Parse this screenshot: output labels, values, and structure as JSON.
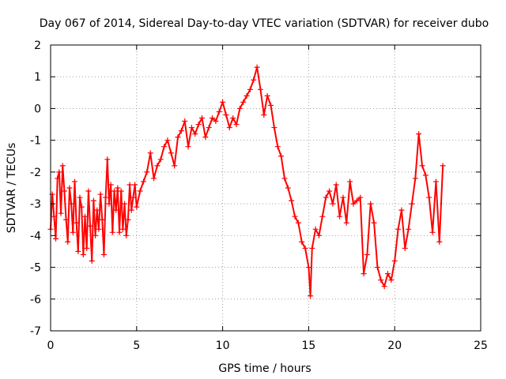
{
  "chart_data": {
    "type": "scatter",
    "title": "Day 067 of 2014, Sidereal Day-to-day VTEC variation (SDTVAR) for receiver dubo",
    "xlabel": "GPS time / hours",
    "ylabel": "SDTVAR / TECUs",
    "xlim": [
      0,
      25
    ],
    "ylim": [
      -7,
      2
    ],
    "xticks": [
      0,
      5,
      10,
      15,
      20,
      25
    ],
    "yticks": [
      -7,
      -6,
      -5,
      -4,
      -3,
      -2,
      -1,
      0,
      1,
      2
    ],
    "grid": true,
    "series_color": "#ff0000",
    "marker": "plus",
    "series": [
      {
        "name": "SDTVAR",
        "points": [
          [
            0.0,
            -3.8
          ],
          [
            0.1,
            -2.7
          ],
          [
            0.2,
            -3.4
          ],
          [
            0.3,
            -4.1
          ],
          [
            0.4,
            -2.2
          ],
          [
            0.5,
            -2.0
          ],
          [
            0.6,
            -3.3
          ],
          [
            0.7,
            -1.8
          ],
          [
            0.8,
            -2.6
          ],
          [
            0.9,
            -3.5
          ],
          [
            1.0,
            -4.2
          ],
          [
            1.1,
            -2.5
          ],
          [
            1.2,
            -3.0
          ],
          [
            1.3,
            -3.9
          ],
          [
            1.4,
            -2.3
          ],
          [
            1.5,
            -3.6
          ],
          [
            1.6,
            -4.5
          ],
          [
            1.7,
            -2.8
          ],
          [
            1.8,
            -3.1
          ],
          [
            1.9,
            -4.6
          ],
          [
            2.0,
            -3.4
          ],
          [
            2.1,
            -4.4
          ],
          [
            2.2,
            -2.6
          ],
          [
            2.3,
            -3.7
          ],
          [
            2.4,
            -4.8
          ],
          [
            2.5,
            -2.9
          ],
          [
            2.6,
            -4.0
          ],
          [
            2.7,
            -3.2
          ],
          [
            2.8,
            -3.8
          ],
          [
            2.9,
            -2.7
          ],
          [
            3.0,
            -3.5
          ],
          [
            3.1,
            -4.6
          ],
          [
            3.2,
            -2.8
          ],
          [
            3.3,
            -1.6
          ],
          [
            3.4,
            -3.0
          ],
          [
            3.5,
            -2.4
          ],
          [
            3.6,
            -3.9
          ],
          [
            3.7,
            -2.6
          ],
          [
            3.8,
            -3.2
          ],
          [
            3.9,
            -2.5
          ],
          [
            4.0,
            -3.9
          ],
          [
            4.1,
            -2.6
          ],
          [
            4.2,
            -3.8
          ],
          [
            4.3,
            -3.0
          ],
          [
            4.4,
            -4.0
          ],
          [
            4.5,
            -3.5
          ],
          [
            4.6,
            -2.4
          ],
          [
            4.7,
            -3.2
          ],
          [
            4.8,
            -2.8
          ],
          [
            4.9,
            -2.4
          ],
          [
            5.0,
            -3.1
          ],
          [
            5.2,
            -2.6
          ],
          [
            5.4,
            -2.3
          ],
          [
            5.6,
            -2.0
          ],
          [
            5.8,
            -1.4
          ],
          [
            6.0,
            -2.2
          ],
          [
            6.2,
            -1.8
          ],
          [
            6.4,
            -1.6
          ],
          [
            6.6,
            -1.2
          ],
          [
            6.8,
            -1.0
          ],
          [
            7.0,
            -1.4
          ],
          [
            7.2,
            -1.8
          ],
          [
            7.4,
            -0.9
          ],
          [
            7.6,
            -0.7
          ],
          [
            7.8,
            -0.4
          ],
          [
            8.0,
            -1.2
          ],
          [
            8.2,
            -0.6
          ],
          [
            8.4,
            -0.8
          ],
          [
            8.6,
            -0.5
          ],
          [
            8.8,
            -0.3
          ],
          [
            9.0,
            -0.9
          ],
          [
            9.2,
            -0.6
          ],
          [
            9.4,
            -0.3
          ],
          [
            9.6,
            -0.4
          ],
          [
            9.8,
            -0.1
          ],
          [
            10.0,
            0.2
          ],
          [
            10.2,
            -0.2
          ],
          [
            10.4,
            -0.6
          ],
          [
            10.6,
            -0.3
          ],
          [
            10.8,
            -0.5
          ],
          [
            11.0,
            0.0
          ],
          [
            11.2,
            0.2
          ],
          [
            11.4,
            0.4
          ],
          [
            11.6,
            0.6
          ],
          [
            11.8,
            0.9
          ],
          [
            12.0,
            1.3
          ],
          [
            12.2,
            0.6
          ],
          [
            12.4,
            -0.2
          ],
          [
            12.6,
            0.4
          ],
          [
            12.8,
            0.1
          ],
          [
            13.0,
            -0.6
          ],
          [
            13.2,
            -1.2
          ],
          [
            13.4,
            -1.5
          ],
          [
            13.6,
            -2.2
          ],
          [
            13.8,
            -2.5
          ],
          [
            14.0,
            -2.9
          ],
          [
            14.2,
            -3.4
          ],
          [
            14.4,
            -3.6
          ],
          [
            14.6,
            -4.2
          ],
          [
            14.8,
            -4.4
          ],
          [
            15.0,
            -5.0
          ],
          [
            15.1,
            -5.9
          ],
          [
            15.2,
            -4.4
          ],
          [
            15.4,
            -3.8
          ],
          [
            15.6,
            -4.0
          ],
          [
            15.8,
            -3.4
          ],
          [
            16.0,
            -2.8
          ],
          [
            16.2,
            -2.6
          ],
          [
            16.4,
            -3.0
          ],
          [
            16.6,
            -2.4
          ],
          [
            16.8,
            -3.4
          ],
          [
            17.0,
            -2.8
          ],
          [
            17.2,
            -3.6
          ],
          [
            17.4,
            -2.3
          ],
          [
            17.6,
            -3.0
          ],
          [
            17.8,
            -2.9
          ],
          [
            18.0,
            -2.8
          ],
          [
            18.2,
            -5.2
          ],
          [
            18.4,
            -4.6
          ],
          [
            18.6,
            -3.0
          ],
          [
            18.8,
            -3.6
          ],
          [
            19.0,
            -5.0
          ],
          [
            19.2,
            -5.4
          ],
          [
            19.4,
            -5.6
          ],
          [
            19.6,
            -5.2
          ],
          [
            19.8,
            -5.4
          ],
          [
            20.0,
            -4.8
          ],
          [
            20.2,
            -3.8
          ],
          [
            20.4,
            -3.2
          ],
          [
            20.6,
            -4.4
          ],
          [
            20.8,
            -3.8
          ],
          [
            21.0,
            -3.0
          ],
          [
            21.2,
            -2.2
          ],
          [
            21.4,
            -0.8
          ],
          [
            21.6,
            -1.8
          ],
          [
            21.8,
            -2.1
          ],
          [
            22.0,
            -2.8
          ],
          [
            22.2,
            -3.9
          ],
          [
            22.4,
            -2.3
          ],
          [
            22.6,
            -4.2
          ],
          [
            22.8,
            -1.8
          ]
        ]
      }
    ]
  }
}
